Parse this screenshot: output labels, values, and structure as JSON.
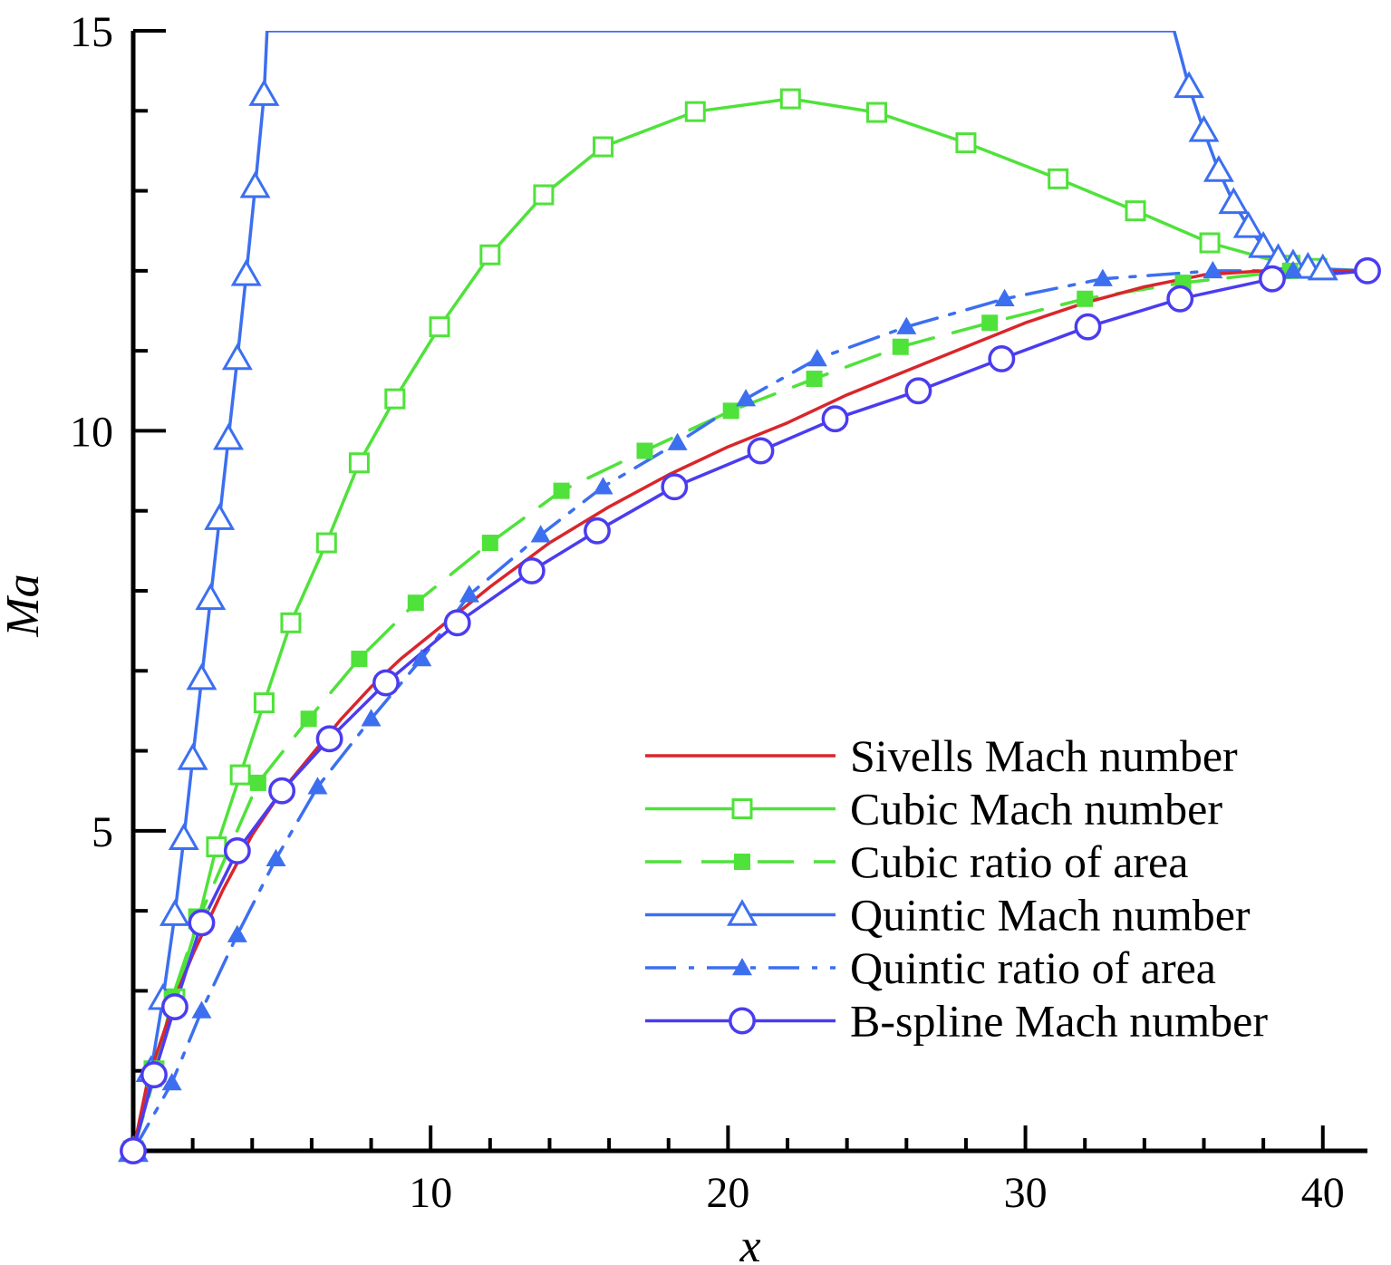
{
  "chart_data": {
    "type": "line",
    "title": "",
    "xlabel": "x",
    "ylabel": "Ma",
    "xlim": [
      0,
      41.5
    ],
    "ylim": [
      1,
      15
    ],
    "xticks": [
      10,
      20,
      30,
      40
    ],
    "yticks": [
      5,
      10,
      15
    ],
    "grid": false,
    "legend_position": "bottom-right",
    "series": [
      {
        "name": "Sivells Mach number",
        "color": "#d9262b",
        "dash": "solid",
        "marker": "none",
        "x": [
          0,
          0.5,
          1.0,
          1.5,
          2.0,
          2.5,
          3.0,
          4.0,
          5.0,
          6.0,
          7.0,
          8.0,
          9.0,
          10.0,
          12.0,
          14.0,
          16.0,
          18.0,
          20.0,
          22.0,
          24.0,
          26.0,
          28.0,
          30.0,
          32.0,
          34.0,
          36.0,
          38.0,
          40.0,
          41.5
        ],
        "y": [
          1.0,
          1.9,
          2.45,
          3.0,
          3.45,
          3.85,
          4.25,
          4.95,
          5.5,
          5.95,
          6.4,
          6.8,
          7.15,
          7.45,
          8.05,
          8.6,
          9.05,
          9.45,
          9.8,
          10.1,
          10.45,
          10.75,
          11.05,
          11.35,
          11.6,
          11.8,
          11.95,
          12.0,
          12.0,
          12.0
        ]
      },
      {
        "name": "Cubic Mach number",
        "color": "#4fe23a",
        "dash": "solid",
        "marker": "open-square",
        "x": [
          0,
          0.7,
          1.4,
          2.2,
          2.8,
          3.6,
          4.4,
          5.3,
          6.5,
          7.6,
          8.8,
          10.3,
          12.0,
          13.8,
          15.8,
          18.9,
          22.1,
          25.0,
          28.0,
          31.1,
          33.7,
          36.2,
          38.9,
          39.8,
          41.5
        ],
        "y": [
          1.0,
          2.0,
          2.9,
          3.9,
          4.8,
          5.7,
          6.6,
          7.6,
          8.6,
          9.6,
          10.4,
          11.3,
          12.2,
          12.95,
          13.55,
          13.99,
          14.15,
          13.98,
          13.6,
          13.15,
          12.75,
          12.35,
          12.07,
          12.03,
          12.0
        ]
      },
      {
        "name": "Cubic ratio of area",
        "color": "#4fe23a",
        "dash": "dashed",
        "marker": "filled-square",
        "x": [
          0,
          0.7,
          1.3,
          2.2,
          4.2,
          5.9,
          7.6,
          9.5,
          12.0,
          14.4,
          17.2,
          20.1,
          22.9,
          25.8,
          28.8,
          32.0,
          35.3,
          38.9,
          41.5
        ],
        "y": [
          1.0,
          1.9,
          2.9,
          3.9,
          5.6,
          6.4,
          7.15,
          7.85,
          8.6,
          9.25,
          9.75,
          10.25,
          10.65,
          11.05,
          11.35,
          11.65,
          11.85,
          12.0,
          12.0
        ]
      },
      {
        "name": "Quintic Mach number",
        "color": "#3c6ff0",
        "dash": "solid",
        "marker": "open-triangle",
        "x": [
          0,
          0.6,
          1.0,
          1.4,
          1.7,
          2.0,
          2.3,
          2.6,
          2.9,
          3.2,
          3.5,
          3.8,
          4.1,
          4.4,
          4.5,
          35.0,
          35.5,
          36.0,
          36.5,
          37.0,
          37.5,
          38.0,
          38.5,
          39.0,
          39.5,
          40.0,
          41.5
        ],
        "y": [
          1.0,
          2.0,
          2.9,
          3.95,
          4.9,
          5.9,
          6.9,
          7.9,
          8.9,
          9.9,
          10.9,
          11.95,
          13.05,
          14.2,
          15.0,
          15.0,
          14.3,
          13.75,
          13.25,
          12.85,
          12.55,
          12.3,
          12.15,
          12.08,
          12.04,
          12.02,
          12.0
        ]
      },
      {
        "name": "Quintic ratio of area",
        "color": "#3c6ff0",
        "dash": "dashdot",
        "marker": "filled-triangle",
        "x": [
          0,
          1.3,
          2.3,
          3.5,
          4.8,
          6.2,
          8.0,
          9.7,
          11.3,
          13.7,
          15.8,
          18.3,
          20.6,
          23.0,
          26.0,
          29.3,
          32.6,
          36.3,
          39.0,
          41.5
        ],
        "y": [
          1.0,
          1.85,
          2.75,
          3.7,
          4.65,
          5.55,
          6.4,
          7.15,
          7.95,
          8.7,
          9.3,
          9.85,
          10.4,
          10.9,
          11.3,
          11.65,
          11.9,
          12.0,
          12.0,
          12.0
        ]
      },
      {
        "name": "B-spline Mach number",
        "color": "#4b3cf0",
        "dash": "solid",
        "marker": "open-circle",
        "x": [
          0,
          0.7,
          1.4,
          2.3,
          3.5,
          5.0,
          6.6,
          8.5,
          10.9,
          13.4,
          15.6,
          18.2,
          21.1,
          23.6,
          26.4,
          29.2,
          32.1,
          35.2,
          38.3,
          41.5
        ],
        "y": [
          1.0,
          1.95,
          2.8,
          3.85,
          4.75,
          5.5,
          6.15,
          6.85,
          7.6,
          8.25,
          8.75,
          9.3,
          9.75,
          10.15,
          10.5,
          10.9,
          11.3,
          11.65,
          11.9,
          12.0
        ]
      }
    ]
  }
}
